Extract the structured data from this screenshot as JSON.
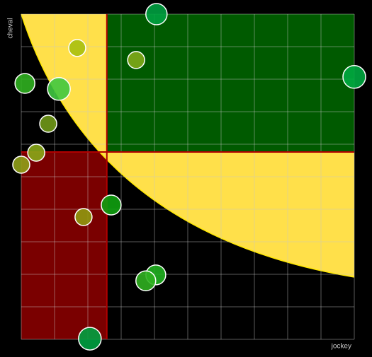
{
  "chart_data": {
    "type": "scatter",
    "x_label": "jockey",
    "y_label": "cheval",
    "x": [
      4.06,
      1.68,
      3.45,
      10.0,
      0.11,
      1.13,
      0.81,
      0.45,
      0.0,
      2.7,
      1.87,
      4.04,
      3.74,
      2.06
    ],
    "values": [
      10.0,
      8.96,
      8.59,
      8.07,
      7.87,
      7.7,
      6.63,
      5.74,
      5.37,
      4.13,
      3.76,
      1.98,
      1.8,
      0.02
    ],
    "sizes": [
      15,
      12,
      12,
      16,
      14,
      16,
      12,
      12,
      12,
      14,
      12,
      14,
      14,
      16
    ],
    "colors": [
      "#00a040",
      "#a8c010",
      "#80a818",
      "#00a840",
      "#30b020",
      "#40c840",
      "#709818",
      "#88a818",
      "#90a018",
      "#10a010",
      "#909810",
      "#20b020",
      "#30b020",
      "#00a040"
    ],
    "xlim": [
      0,
      10
    ],
    "ylim": [
      0,
      10
    ],
    "xticks": [
      0,
      1,
      2,
      3,
      4,
      5,
      6,
      7,
      8,
      9,
      10
    ],
    "yticks": [
      0,
      1,
      2,
      3,
      4,
      5,
      6,
      7,
      8,
      9,
      10
    ],
    "grid": true,
    "x_threshold": 2.57,
    "y_threshold": 5.76
  }
}
